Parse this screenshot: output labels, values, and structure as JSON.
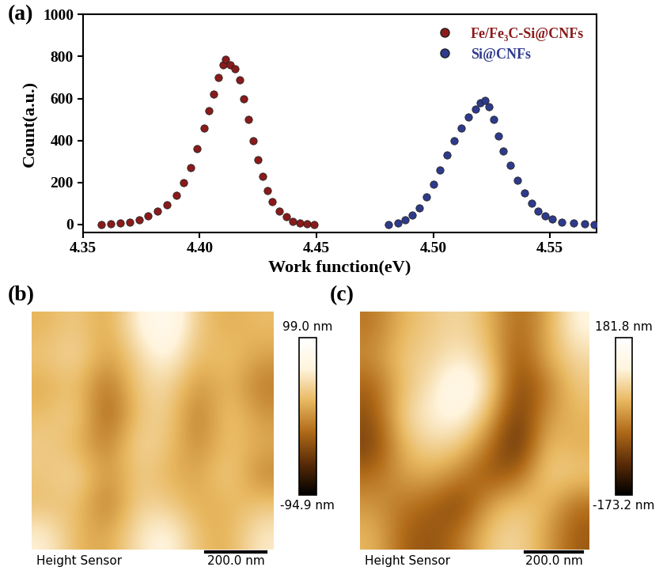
{
  "chart_data": [
    {
      "type": "scatter",
      "title": "(a)",
      "x_label": "Work function(eV)",
      "y_label": "Count(a.u.)",
      "xlim": [
        4.35,
        4.57
      ],
      "xticks": [
        4.35,
        {
          "value": 4.4,
          "label": "4.40"
        },
        4.45,
        {
          "value": 4.5,
          "label": "4.50"
        },
        4.55
      ],
      "ylim": [
        -40,
        1000
      ],
      "yticks": [
        0,
        200,
        400,
        600,
        800,
        1000
      ],
      "grid": false,
      "legend": "upper right",
      "marker": "o",
      "series": [
        {
          "name": "Fe/Fe₃C-Si@CNFs",
          "color": "#8b1a1a",
          "x": [
            4.358,
            4.362,
            4.366,
            4.37,
            4.374,
            4.378,
            4.382,
            4.386,
            4.39,
            4.393,
            4.396,
            4.399,
            4.402,
            4.404,
            4.406,
            4.408,
            4.41,
            4.411,
            4.413,
            4.415,
            4.417,
            4.419,
            4.421,
            4.423,
            4.425,
            4.427,
            4.429,
            4.431,
            4.434,
            4.437,
            4.44,
            4.443,
            4.446,
            4.449
          ],
          "values": [
            0,
            3,
            6,
            12,
            22,
            40,
            65,
            95,
            140,
            200,
            270,
            360,
            460,
            540,
            620,
            700,
            760,
            785,
            760,
            740,
            690,
            600,
            500,
            400,
            310,
            230,
            160,
            110,
            65,
            35,
            15,
            6,
            2,
            0
          ]
        },
        {
          "name": "Si@CNFs",
          "color": "#2e3a8c",
          "x": [
            4.481,
            4.485,
            4.488,
            4.491,
            4.494,
            4.497,
            4.5,
            4.503,
            4.506,
            4.509,
            4.512,
            4.515,
            4.518,
            4.52,
            4.522,
            4.524,
            4.526,
            4.528,
            4.53,
            4.533,
            4.536,
            4.539,
            4.542,
            4.545,
            4.548,
            4.551,
            4.555,
            4.56,
            4.565,
            4.569
          ],
          "values": [
            0,
            8,
            20,
            45,
            80,
            130,
            190,
            260,
            330,
            400,
            460,
            510,
            550,
            580,
            590,
            560,
            500,
            420,
            350,
            280,
            210,
            150,
            100,
            65,
            40,
            25,
            12,
            5,
            2,
            0
          ]
        }
      ]
    },
    {
      "type": "heatmap",
      "title": "(b)",
      "tick_labels": false,
      "annotations": [
        "Height Sensor"
      ],
      "scale_bar": "200.0 nm",
      "cells": [
        [
          20,
          35,
          10,
          60,
          90,
          30,
          15,
          25
        ],
        [
          30,
          45,
          5,
          40,
          70,
          20,
          30,
          10
        ],
        [
          15,
          30,
          -20,
          35,
          45,
          0,
          25,
          -10
        ],
        [
          25,
          40,
          -30,
          30,
          40,
          -15,
          35,
          5
        ],
        [
          35,
          20,
          -10,
          45,
          30,
          -5,
          30,
          15
        ],
        [
          30,
          45,
          0,
          35,
          20,
          10,
          40,
          -5
        ],
        [
          25,
          30,
          -15,
          40,
          35,
          15,
          20,
          30
        ],
        [
          60,
          20,
          10,
          50,
          70,
          25,
          15,
          55
        ]
      ],
      "color_range": [
        -94.9,
        99.0
      ],
      "color_ticks": [
        {
          "value": 99.0,
          "label": "99.0 nm"
        },
        {
          "value": -94.9,
          "label": "-94.9 nm"
        }
      ]
    },
    {
      "type": "heatmap",
      "title": "(c)",
      "tick_labels": false,
      "annotations": [
        "Height Sensor"
      ],
      "scale_bar": "200.0 nm",
      "cells": [
        [
          -20,
          40,
          60,
          80,
          40,
          -40,
          20,
          120
        ],
        [
          0,
          60,
          70,
          100,
          60,
          -60,
          30,
          80
        ],
        [
          -40,
          50,
          90,
          160,
          90,
          -80,
          -20,
          60
        ],
        [
          -60,
          70,
          110,
          130,
          40,
          -100,
          10,
          40
        ],
        [
          -80,
          40,
          80,
          60,
          -20,
          -120,
          50,
          30
        ],
        [
          -30,
          20,
          30,
          -10,
          -60,
          -40,
          70,
          60
        ],
        [
          10,
          -20,
          -40,
          -80,
          20,
          60,
          40,
          -30
        ],
        [
          40,
          -40,
          -60,
          -20,
          60,
          80,
          20,
          -50
        ]
      ],
      "color_range": [
        -173.2,
        181.8
      ],
      "color_ticks": [
        {
          "value": 181.8,
          "label": "181.8 nm"
        },
        {
          "value": -173.2,
          "label": "-173.2 nm"
        }
      ]
    }
  ]
}
